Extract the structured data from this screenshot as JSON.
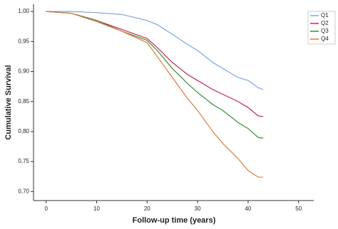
{
  "chart_data": {
    "type": "line",
    "x_label": "Follow-up time (years)",
    "y_label": "Cumulative Survival",
    "x": [
      0,
      5,
      10,
      15,
      20,
      22,
      25,
      28,
      30,
      33,
      35,
      38,
      40,
      42,
      43
    ],
    "series": [
      {
        "name": "Q1",
        "color": "#7ea6d8",
        "values": [
          1.0,
          1.0,
          0.998,
          0.995,
          0.985,
          0.978,
          0.962,
          0.945,
          0.935,
          0.915,
          0.905,
          0.89,
          0.885,
          0.873,
          0.87
        ]
      },
      {
        "name": "Q2",
        "color": "#c2255a",
        "values": [
          1.0,
          0.997,
          0.985,
          0.97,
          0.955,
          0.94,
          0.915,
          0.895,
          0.885,
          0.87,
          0.862,
          0.85,
          0.84,
          0.826,
          0.825
        ]
      },
      {
        "name": "Q3",
        "color": "#3b8c3b",
        "values": [
          1.0,
          0.997,
          0.985,
          0.967,
          0.952,
          0.935,
          0.905,
          0.88,
          0.865,
          0.845,
          0.835,
          0.815,
          0.805,
          0.79,
          0.789
        ]
      },
      {
        "name": "Q4",
        "color": "#e07b39",
        "values": [
          1.0,
          0.997,
          0.983,
          0.967,
          0.948,
          0.925,
          0.89,
          0.855,
          0.835,
          0.8,
          0.78,
          0.755,
          0.735,
          0.724,
          0.724
        ]
      }
    ],
    "xlim": [
      -2.5,
      53
    ],
    "ylim": [
      0.685,
      1.012
    ],
    "xticks": [
      0,
      10,
      20,
      30,
      40,
      50
    ],
    "yticks": [
      {
        "value": 0.7,
        "label": "0,70"
      },
      {
        "value": 0.75,
        "label": "0,75"
      },
      {
        "value": 0.8,
        "label": "0,80"
      },
      {
        "value": 0.85,
        "label": "0,85"
      },
      {
        "value": 0.9,
        "label": "0,90"
      },
      {
        "value": 0.95,
        "label": "0,95"
      },
      {
        "value": 1.0,
        "label": "1,00"
      }
    ],
    "grid": false,
    "legend_position": "top-right"
  }
}
